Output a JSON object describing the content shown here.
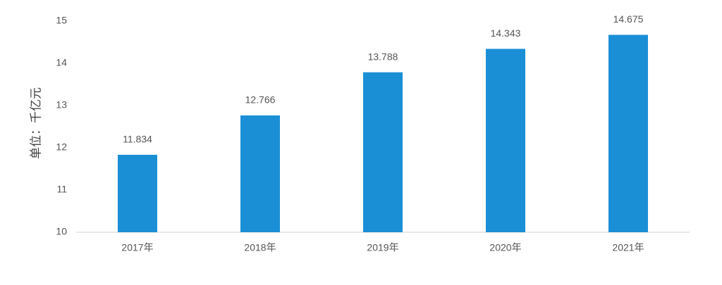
{
  "chart_data": {
    "type": "bar",
    "y_label": "单位：千亿元",
    "categories": [
      "2017年",
      "2018年",
      "2019年",
      "2020年",
      "2021年"
    ],
    "values": [
      11.834,
      12.766,
      13.788,
      14.343,
      14.675
    ],
    "color": "#1b8fd6",
    "ylim": [
      10,
      15
    ],
    "yticks": [
      10,
      11,
      12,
      13,
      14,
      15
    ],
    "grid": false
  }
}
